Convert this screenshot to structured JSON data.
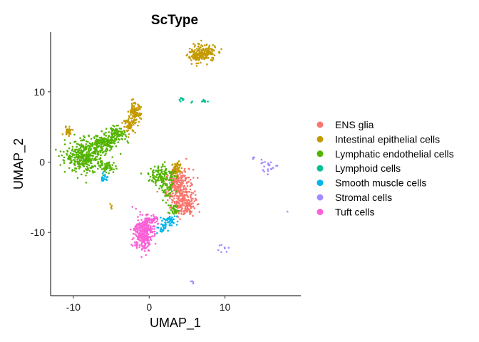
{
  "chart_data": {
    "type": "scatter",
    "title": "ScType",
    "xlabel": "UMAP_1",
    "ylabel": "UMAP_2",
    "xlim": [
      -13,
      20
    ],
    "ylim": [
      -19,
      18.5
    ],
    "xticks": [
      -10,
      0,
      10
    ],
    "yticks": [
      10,
      0,
      -10
    ],
    "x_tick_labels": [
      "-10",
      "0",
      "10"
    ],
    "y_tick_labels": [
      "10",
      "0",
      "-10"
    ],
    "grid": false,
    "legend_position": "right",
    "series": [
      {
        "name": "ENS glia",
        "color": "#F8766D",
        "clusters": [
          {
            "cx": 4.0,
            "cy": -4.0,
            "sx": 0.9,
            "sy": 1.5,
            "n": 260
          },
          {
            "cx": 4.8,
            "cy": -6.2,
            "sx": 0.7,
            "sy": 0.8,
            "n": 110
          },
          {
            "cx": 3.6,
            "cy": -2.2,
            "sx": 0.5,
            "sy": 0.7,
            "n": 40
          }
        ]
      },
      {
        "name": "Intestinal epithelial cells",
        "color": "#C49A00",
        "clusters": [
          {
            "cx": 7.2,
            "cy": 15.5,
            "sx": 0.8,
            "sy": 0.6,
            "n": 160
          },
          {
            "cx": 6.1,
            "cy": 15.0,
            "sx": 0.5,
            "sy": 0.4,
            "n": 60
          },
          {
            "cx": -1.9,
            "cy": 7.0,
            "sx": 0.4,
            "sy": 0.7,
            "n": 110
          },
          {
            "cx": -2.6,
            "cy": 5.2,
            "sx": 0.4,
            "sy": 0.5,
            "n": 50
          },
          {
            "cx": -10.7,
            "cy": 4.5,
            "sx": 0.3,
            "sy": 0.3,
            "n": 28
          },
          {
            "cx": 3.7,
            "cy": -0.9,
            "sx": 0.35,
            "sy": 0.6,
            "n": 50
          },
          {
            "cx": -5.0,
            "cy": -6.2,
            "sx": 0.1,
            "sy": 0.2,
            "n": 4
          }
        ]
      },
      {
        "name": "Lymphatic endothelial cells",
        "color": "#53B400",
        "clusters": [
          {
            "cx": -8.4,
            "cy": 0.8,
            "sx": 1.3,
            "sy": 1.1,
            "n": 380
          },
          {
            "cx": -6.0,
            "cy": 2.7,
            "sx": 0.9,
            "sy": 0.6,
            "n": 160
          },
          {
            "cx": -4.3,
            "cy": 4.0,
            "sx": 0.6,
            "sy": 0.5,
            "n": 90
          },
          {
            "cx": -5.4,
            "cy": -0.7,
            "sx": 0.5,
            "sy": 0.4,
            "n": 40
          },
          {
            "cx": 1.7,
            "cy": -1.8,
            "sx": 0.9,
            "sy": 0.7,
            "n": 120
          },
          {
            "cx": 2.4,
            "cy": -4.0,
            "sx": 0.5,
            "sy": 0.6,
            "n": 50
          },
          {
            "cx": 3.3,
            "cy": -6.8,
            "sx": 0.4,
            "sy": 0.4,
            "n": 30
          }
        ]
      },
      {
        "name": "Lymphoid cells",
        "color": "#00C094",
        "clusters": [
          {
            "cx": 4.3,
            "cy": 9.0,
            "sx": 0.2,
            "sy": 0.15,
            "n": 8
          },
          {
            "cx": 7.3,
            "cy": 8.6,
            "sx": 0.25,
            "sy": 0.1,
            "n": 10
          },
          {
            "cx": 5.6,
            "cy": 8.6,
            "sx": 0.05,
            "sy": 0.1,
            "n": 2
          }
        ]
      },
      {
        "name": "Smooth muscle cells",
        "color": "#00B6EB",
        "clusters": [
          {
            "cx": -6.0,
            "cy": -2.1,
            "sx": 0.25,
            "sy": 0.3,
            "n": 22
          },
          {
            "cx": 2.7,
            "cy": -8.4,
            "sx": 0.5,
            "sy": 0.4,
            "n": 45
          },
          {
            "cx": 1.6,
            "cy": -9.4,
            "sx": 0.4,
            "sy": 0.35,
            "n": 25
          }
        ]
      },
      {
        "name": "Stromal cells",
        "color": "#A58AFF",
        "clusters": [
          {
            "cx": 15.6,
            "cy": -0.6,
            "sx": 0.7,
            "sy": 0.4,
            "n": 22
          },
          {
            "cx": 13.8,
            "cy": 0.6,
            "sx": 0.15,
            "sy": 0.15,
            "n": 4
          },
          {
            "cx": 9.8,
            "cy": -12.3,
            "sx": 0.5,
            "sy": 0.3,
            "n": 8
          },
          {
            "cx": 18.2,
            "cy": -7.0,
            "sx": 0.05,
            "sy": 0.05,
            "n": 1
          },
          {
            "cx": 5.8,
            "cy": -17.0,
            "sx": 0.12,
            "sy": 0.2,
            "n": 4
          }
        ]
      },
      {
        "name": "Tuft cells",
        "color": "#FB61D7",
        "clusters": [
          {
            "cx": -0.8,
            "cy": -10.2,
            "sx": 0.6,
            "sy": 1.2,
            "n": 280
          },
          {
            "cx": -0.3,
            "cy": -8.6,
            "sx": 0.5,
            "sy": 0.5,
            "n": 60
          },
          {
            "cx": 0.4,
            "cy": -8.2,
            "sx": 0.4,
            "sy": 0.3,
            "n": 20
          }
        ]
      }
    ]
  }
}
